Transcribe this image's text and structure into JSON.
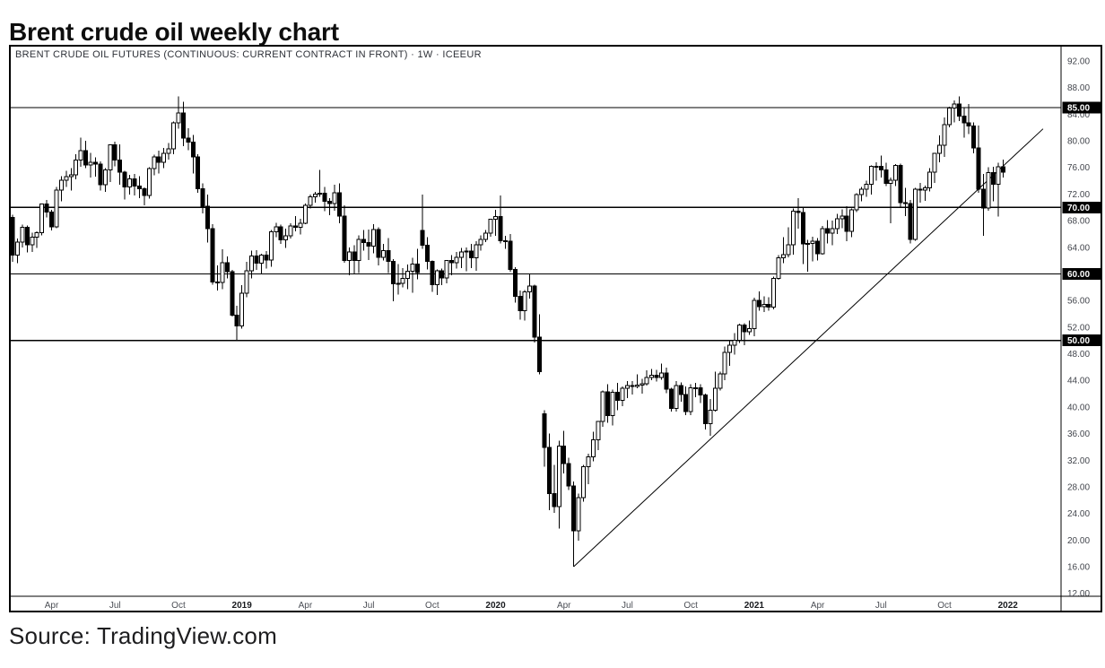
{
  "page": {
    "title": "Brent crude oil weekly chart",
    "source_caption": "Source: TradingView.com"
  },
  "colors": {
    "background": "#ffffff",
    "up_candle_fill": "#ffffff",
    "down_candle_fill": "#000000",
    "candle_outline": "#000000",
    "level_line": "#000000",
    "trend_line": "#000000",
    "axis_text": "#42454c",
    "badge_bg": "#000000",
    "badge_text": "#ffffff",
    "border": "#000000"
  },
  "chart_data": {
    "type": "candlestick",
    "title": "Brent crude oil weekly chart",
    "symbol_header": "BRENT CRUDE OIL FUTURES (CONTINUOUS: CURRENT CONTRACT IN FRONT) · 1W · ICEEUR",
    "symbol": "BRENT CRUDE OIL FUTURES (CONTINUOUS: CURRENT CONTRACT IN FRONT)",
    "interval": "1W",
    "exchange": "ICEEUR",
    "frequency": "weekly",
    "start_date": "2018-02-05",
    "end_date": "2021-12-27",
    "grid": false,
    "legend_position": "none",
    "ylim": [
      11.5,
      94.4
    ],
    "y_ticks": [
      92,
      88,
      84,
      80,
      76,
      72,
      68,
      64,
      60,
      56,
      52,
      48,
      44,
      40,
      36,
      32,
      28,
      24,
      20,
      16,
      12
    ],
    "y_tick_format": "0.00",
    "price_lines": [
      85.0,
      70.0,
      60.0,
      50.0
    ],
    "axis_badges": [
      "85.00",
      "70.00",
      "60.00",
      "50.00"
    ],
    "trendline": {
      "from_week": 115,
      "from_price": 16.0,
      "to_week": 211.2,
      "to_price": 81.8
    },
    "x_axis_labels": [
      {
        "label": "Apr",
        "week": 8,
        "year": false
      },
      {
        "label": "Jul",
        "week": 21,
        "year": false
      },
      {
        "label": "Oct",
        "week": 34,
        "year": false
      },
      {
        "label": "2019",
        "week": 47,
        "year": true
      },
      {
        "label": "Apr",
        "week": 60,
        "year": false
      },
      {
        "label": "Jul",
        "week": 73,
        "year": false
      },
      {
        "label": "Oct",
        "week": 86,
        "year": false
      },
      {
        "label": "2020",
        "week": 99,
        "year": true
      },
      {
        "label": "Apr",
        "week": 113,
        "year": false
      },
      {
        "label": "Jul",
        "week": 126,
        "year": false
      },
      {
        "label": "Oct",
        "week": 139,
        "year": false
      },
      {
        "label": "2021",
        "week": 152,
        "year": true
      },
      {
        "label": "Apr",
        "week": 165,
        "year": false
      },
      {
        "label": "Jul",
        "week": 178,
        "year": false
      },
      {
        "label": "Oct",
        "week": 191,
        "year": false
      },
      {
        "label": "2022",
        "week": 204,
        "year": true
      }
    ],
    "weeks_format": [
      "open",
      "high",
      "low",
      "close"
    ],
    "weeks": [
      [
        68.5,
        68.9,
        61.8,
        62.8
      ],
      [
        62.8,
        65.3,
        61.6,
        64.8
      ],
      [
        64.8,
        67.4,
        64.0,
        67.0
      ],
      [
        67.0,
        67.3,
        63.2,
        64.4
      ],
      [
        64.4,
        66.2,
        63.3,
        65.5
      ],
      [
        65.5,
        66.4,
        63.9,
        66.2
      ],
      [
        66.2,
        70.6,
        65.8,
        70.5
      ],
      [
        70.5,
        71.1,
        68.5,
        69.3
      ],
      [
        69.3,
        69.6,
        66.5,
        67.1
      ],
      [
        67.1,
        73.1,
        66.9,
        72.6
      ],
      [
        72.6,
        74.7,
        70.9,
        74.1
      ],
      [
        74.1,
        75.5,
        73.1,
        74.6
      ],
      [
        74.6,
        75.9,
        72.5,
        74.9
      ],
      [
        74.9,
        78.0,
        74.2,
        77.1
      ],
      [
        77.1,
        80.5,
        76.1,
        78.5
      ],
      [
        78.5,
        80.0,
        75.9,
        76.4
      ],
      [
        76.4,
        78.2,
        74.5,
        76.8
      ],
      [
        76.8,
        77.5,
        74.6,
        76.5
      ],
      [
        76.5,
        76.9,
        72.5,
        73.4
      ],
      [
        73.4,
        75.9,
        72.3,
        75.6
      ],
      [
        75.6,
        79.5,
        73.8,
        79.4
      ],
      [
        79.4,
        79.9,
        76.2,
        77.1
      ],
      [
        77.1,
        79.5,
        73.4,
        75.3
      ],
      [
        75.3,
        75.5,
        71.2,
        73.1
      ],
      [
        73.1,
        74.9,
        71.9,
        74.3
      ],
      [
        74.3,
        75.0,
        71.8,
        73.2
      ],
      [
        73.2,
        74.7,
        71.4,
        72.8
      ],
      [
        72.8,
        73.0,
        70.3,
        71.8
      ],
      [
        71.8,
        76.0,
        71.3,
        75.8
      ],
      [
        75.8,
        77.9,
        74.8,
        77.6
      ],
      [
        77.6,
        78.5,
        75.1,
        76.8
      ],
      [
        76.8,
        78.9,
        75.9,
        78.1
      ],
      [
        78.1,
        79.7,
        77.2,
        78.8
      ],
      [
        78.8,
        82.9,
        78.0,
        82.7
      ],
      [
        82.7,
        86.7,
        81.8,
        84.2
      ],
      [
        84.2,
        85.9,
        79.2,
        80.4
      ],
      [
        80.4,
        81.9,
        78.6,
        79.8
      ],
      [
        79.8,
        80.9,
        75.1,
        77.6
      ],
      [
        77.6,
        78.0,
        72.2,
        72.8
      ],
      [
        72.8,
        73.6,
        69.1,
        70.2
      ],
      [
        70.2,
        71.9,
        64.7,
        66.8
      ],
      [
        66.8,
        67.5,
        58.4,
        58.8
      ],
      [
        58.8,
        61.3,
        57.5,
        58.7
      ],
      [
        58.7,
        63.7,
        57.7,
        61.7
      ],
      [
        61.7,
        62.6,
        59.3,
        60.3
      ],
      [
        60.3,
        60.6,
        53.6,
        53.8
      ],
      [
        53.8,
        55.2,
        49.9,
        52.2
      ],
      [
        52.2,
        58.3,
        51.8,
        57.1
      ],
      [
        57.1,
        61.8,
        56.5,
        60.5
      ],
      [
        60.5,
        63.5,
        59.3,
        62.7
      ],
      [
        62.7,
        63.6,
        60.6,
        61.6
      ],
      [
        61.6,
        63.0,
        59.9,
        62.8
      ],
      [
        62.8,
        63.4,
        60.8,
        62.1
      ],
      [
        62.1,
        66.6,
        61.1,
        66.3
      ],
      [
        66.3,
        67.7,
        65.5,
        67.1
      ],
      [
        67.1,
        67.4,
        64.5,
        65.1
      ],
      [
        65.1,
        66.8,
        63.9,
        65.7
      ],
      [
        65.7,
        67.6,
        65.3,
        67.2
      ],
      [
        67.2,
        68.7,
        66.4,
        67.0
      ],
      [
        67.0,
        68.3,
        65.9,
        67.6
      ],
      [
        67.6,
        70.6,
        67.5,
        70.3
      ],
      [
        70.3,
        71.9,
        69.8,
        71.6
      ],
      [
        71.6,
        72.3,
        70.7,
        72.0
      ],
      [
        72.0,
        75.6,
        71.6,
        72.1
      ],
      [
        72.1,
        73.1,
        69.4,
        70.9
      ],
      [
        70.9,
        71.4,
        68.8,
        70.6
      ],
      [
        70.6,
        73.4,
        69.5,
        72.2
      ],
      [
        72.2,
        73.6,
        67.6,
        68.7
      ],
      [
        68.7,
        70.3,
        61.7,
        62.0
      ],
      [
        62.0,
        64.0,
        59.8,
        63.3
      ],
      [
        63.3,
        64.3,
        60.0,
        62.0
      ],
      [
        62.0,
        65.8,
        60.1,
        65.2
      ],
      [
        65.2,
        66.6,
        63.5,
        64.7
      ],
      [
        64.7,
        66.7,
        62.1,
        64.2
      ],
      [
        64.2,
        67.5,
        63.1,
        66.7
      ],
      [
        66.7,
        67.0,
        61.3,
        62.5
      ],
      [
        62.5,
        64.5,
        62.0,
        63.5
      ],
      [
        63.5,
        65.4,
        60.1,
        61.9
      ],
      [
        61.9,
        62.2,
        55.9,
        58.5
      ],
      [
        58.5,
        61.5,
        56.9,
        58.6
      ],
      [
        58.6,
        60.9,
        58.0,
        59.3
      ],
      [
        59.3,
        61.4,
        57.7,
        60.4
      ],
      [
        60.4,
        62.4,
        57.2,
        61.5
      ],
      [
        61.5,
        63.8,
        59.2,
        60.2
      ],
      [
        66.5,
        71.9,
        63.8,
        64.3
      ],
      [
        64.3,
        65.5,
        60.7,
        61.9
      ],
      [
        61.9,
        62.0,
        57.3,
        58.4
      ],
      [
        58.4,
        60.7,
        56.8,
        60.5
      ],
      [
        60.5,
        60.8,
        58.3,
        59.4
      ],
      [
        59.4,
        62.1,
        58.6,
        62.0
      ],
      [
        62.0,
        62.8,
        59.8,
        61.7
      ],
      [
        61.7,
        63.3,
        60.8,
        62.5
      ],
      [
        62.5,
        63.9,
        60.9,
        63.3
      ],
      [
        63.3,
        64.0,
        60.4,
        63.4
      ],
      [
        63.4,
        64.5,
        60.9,
        62.4
      ],
      [
        62.4,
        64.9,
        60.5,
        64.4
      ],
      [
        64.4,
        65.8,
        63.5,
        65.2
      ],
      [
        65.2,
        66.6,
        64.8,
        66.1
      ],
      [
        66.1,
        68.2,
        65.6,
        68.2
      ],
      [
        68.2,
        69.6,
        65.7,
        68.6
      ],
      [
        68.6,
        71.8,
        64.6,
        65.0
      ],
      [
        65.0,
        65.7,
        63.8,
        64.9
      ],
      [
        64.9,
        66.0,
        60.3,
        60.7
      ],
      [
        60.7,
        61.0,
        55.7,
        56.6
      ],
      [
        56.6,
        57.5,
        53.1,
        54.5
      ],
      [
        54.5,
        57.6,
        53.0,
        57.3
      ],
      [
        57.3,
        60.0,
        56.3,
        58.2
      ],
      [
        58.2,
        58.4,
        49.7,
        50.5
      ],
      [
        50.5,
        53.9,
        44.9,
        45.3
      ],
      [
        39.0,
        39.5,
        31.0,
        33.9
      ],
      [
        33.9,
        36.0,
        24.5,
        27.0
      ],
      [
        27.0,
        31.3,
        24.1,
        25.0
      ],
      [
        25.0,
        34.9,
        21.7,
        34.1
      ],
      [
        34.1,
        36.4,
        30.0,
        31.5
      ],
      [
        31.5,
        32.4,
        27.5,
        28.1
      ],
      [
        28.1,
        28.8,
        16.0,
        21.4
      ],
      [
        21.4,
        27.0,
        19.9,
        26.4
      ],
      [
        26.4,
        31.3,
        25.8,
        31.0
      ],
      [
        31.0,
        33.0,
        28.4,
        32.5
      ],
      [
        32.5,
        36.3,
        31.8,
        35.1
      ],
      [
        35.1,
        37.9,
        33.5,
        37.8
      ],
      [
        37.8,
        42.5,
        37.0,
        42.3
      ],
      [
        42.3,
        43.4,
        37.6,
        38.7
      ],
      [
        38.7,
        42.6,
        37.2,
        42.2
      ],
      [
        42.2,
        43.6,
        39.5,
        41.0
      ],
      [
        41.0,
        43.1,
        40.1,
        42.8
      ],
      [
        42.8,
        43.9,
        41.3,
        43.2
      ],
      [
        43.2,
        43.9,
        41.9,
        43.1
      ],
      [
        43.1,
        44.9,
        42.8,
        43.3
      ],
      [
        43.3,
        44.2,
        42.0,
        43.5
      ],
      [
        43.5,
        45.5,
        43.2,
        44.4
      ],
      [
        44.4,
        45.7,
        44.0,
        44.8
      ],
      [
        44.8,
        45.6,
        43.8,
        44.4
      ],
      [
        44.4,
        46.5,
        44.1,
        45.1
      ],
      [
        45.1,
        45.9,
        42.1,
        42.7
      ],
      [
        42.7,
        42.9,
        39.3,
        39.8
      ],
      [
        39.8,
        43.9,
        39.3,
        43.2
      ],
      [
        43.2,
        43.7,
        40.8,
        41.9
      ],
      [
        41.9,
        43.1,
        38.8,
        39.3
      ],
      [
        39.3,
        43.4,
        38.8,
        42.9
      ],
      [
        42.9,
        43.6,
        41.5,
        42.9
      ],
      [
        42.9,
        43.4,
        40.6,
        41.8
      ],
      [
        41.8,
        42.0,
        36.6,
        37.5
      ],
      [
        37.5,
        41.2,
        35.7,
        39.5
      ],
      [
        39.5,
        45.3,
        39.3,
        42.8
      ],
      [
        42.8,
        45.3,
        42.5,
        45.0
      ],
      [
        45.0,
        49.1,
        44.0,
        48.2
      ],
      [
        48.2,
        49.9,
        46.2,
        49.3
      ],
      [
        49.3,
        51.1,
        47.9,
        50.0
      ],
      [
        50.0,
        52.5,
        49.6,
        52.3
      ],
      [
        52.3,
        52.6,
        49.3,
        51.3
      ],
      [
        51.3,
        53.0,
        50.8,
        51.8
      ],
      [
        51.8,
        56.4,
        50.6,
        56.0
      ],
      [
        56.0,
        57.4,
        54.5,
        55.1
      ],
      [
        55.1,
        56.6,
        54.3,
        55.4
      ],
      [
        55.4,
        56.5,
        54.5,
        55.0
      ],
      [
        55.0,
        59.6,
        54.7,
        59.3
      ],
      [
        59.3,
        62.8,
        59.1,
        62.4
      ],
      [
        62.4,
        65.5,
        61.6,
        62.9
      ],
      [
        62.9,
        67.0,
        62.5,
        64.4
      ],
      [
        64.4,
        69.8,
        62.9,
        69.4
      ],
      [
        69.4,
        71.4,
        66.8,
        69.2
      ],
      [
        69.2,
        69.9,
        61.5,
        64.5
      ],
      [
        64.5,
        65.1,
        60.3,
        64.6
      ],
      [
        64.6,
        65.6,
        61.9,
        64.9
      ],
      [
        64.9,
        65.4,
        62.0,
        63.0
      ],
      [
        63.0,
        67.2,
        62.9,
        66.8
      ],
      [
        66.8,
        68.1,
        64.6,
        66.1
      ],
      [
        66.1,
        68.0,
        64.3,
        66.8
      ],
      [
        66.8,
        69.0,
        66.0,
        68.3
      ],
      [
        68.3,
        69.7,
        66.9,
        68.7
      ],
      [
        68.7,
        70.2,
        64.9,
        66.4
      ],
      [
        66.4,
        69.8,
        65.5,
        69.6
      ],
      [
        69.6,
        72.1,
        69.3,
        71.9
      ],
      [
        71.9,
        73.1,
        70.9,
        72.7
      ],
      [
        72.7,
        74.0,
        71.6,
        73.5
      ],
      [
        73.5,
        76.3,
        71.9,
        76.2
      ],
      [
        76.2,
        76.8,
        74.0,
        76.2
      ],
      [
        76.2,
        77.8,
        74.5,
        75.6
      ],
      [
        75.6,
        76.7,
        73.2,
        73.6
      ],
      [
        73.6,
        74.5,
        67.6,
        74.1
      ],
      [
        74.1,
        76.5,
        73.2,
        76.3
      ],
      [
        76.3,
        76.6,
        69.9,
        70.7
      ],
      [
        70.7,
        72.9,
        68.7,
        70.6
      ],
      [
        70.6,
        71.1,
        64.6,
        65.2
      ],
      [
        65.2,
        72.9,
        65.0,
        72.7
      ],
      [
        72.7,
        73.7,
        70.7,
        72.6
      ],
      [
        72.6,
        73.3,
        71.0,
        72.9
      ],
      [
        72.9,
        75.9,
        72.4,
        75.3
      ],
      [
        75.3,
        78.2,
        73.7,
        78.1
      ],
      [
        78.1,
        80.8,
        76.8,
        79.3
      ],
      [
        79.3,
        83.5,
        77.6,
        82.4
      ],
      [
        82.4,
        85.1,
        82.0,
        84.9
      ],
      [
        84.9,
        86.1,
        82.8,
        85.5
      ],
      [
        85.5,
        86.7,
        83.0,
        83.7
      ],
      [
        83.7,
        85.0,
        80.5,
        82.7
      ],
      [
        82.7,
        85.5,
        81.0,
        82.2
      ],
      [
        82.2,
        82.8,
        78.1,
        78.9
      ],
      [
        78.9,
        82.3,
        72.2,
        72.7
      ],
      [
        72.7,
        75.0,
        65.7,
        69.9
      ],
      [
        69.9,
        76.0,
        69.5,
        75.2
      ],
      [
        75.2,
        76.1,
        70.9,
        73.5
      ],
      [
        73.5,
        76.7,
        68.6,
        76.1
      ],
      [
        76.1,
        77.2,
        74.5,
        75.3
      ]
    ]
  }
}
